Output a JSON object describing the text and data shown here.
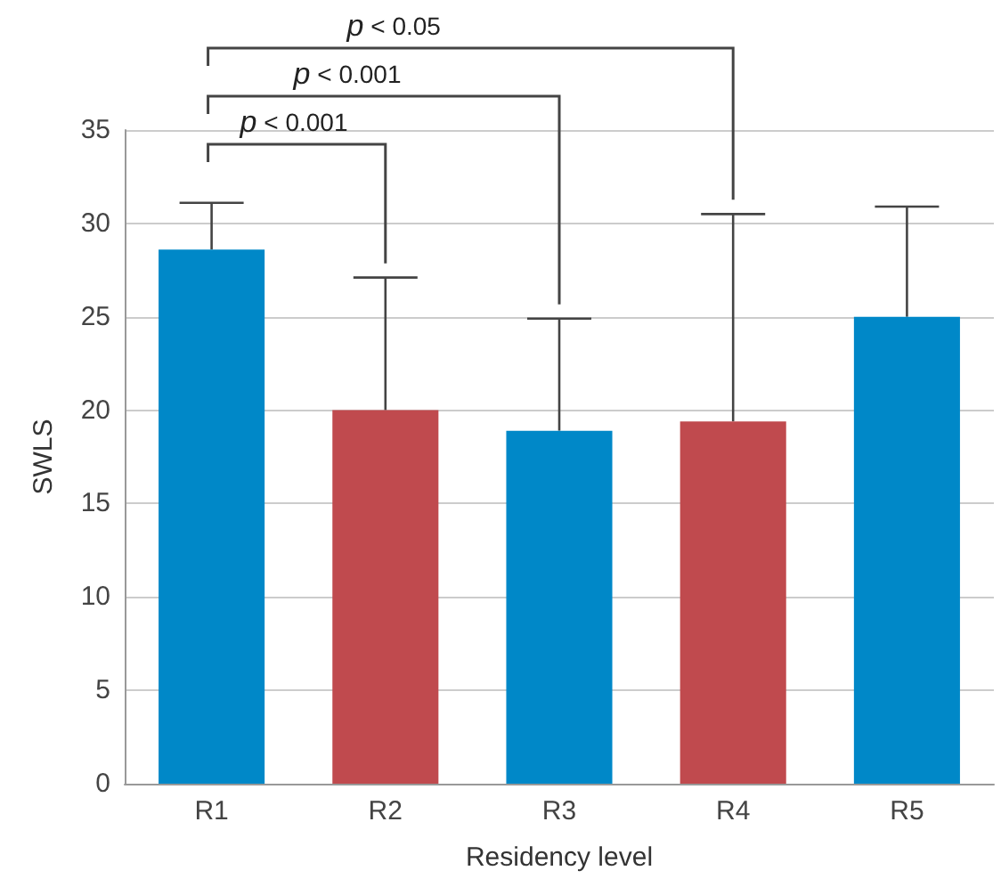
{
  "chart_data": {
    "type": "bar",
    "xlabel": "Residency level",
    "ylabel": "SWLS",
    "categories": [
      "R1",
      "R2",
      "R3",
      "R4",
      "R5"
    ],
    "values": [
      28.6,
      20,
      18.9,
      19.4,
      25
    ],
    "colors": [
      "#0088c8",
      "#c04a4e",
      "#0088c8",
      "#c04a4e",
      "#0088c8"
    ],
    "errors": [
      [
        28.6,
        31.1
      ],
      [
        20,
        27.1
      ],
      [
        18.9,
        24.9
      ],
      [
        19.4,
        30.5
      ],
      [
        25,
        30.9
      ]
    ],
    "ylim": [
      0,
      35
    ],
    "yticks": [
      0,
      5,
      10,
      15,
      20,
      25,
      30,
      35
    ],
    "grid": "y",
    "annotations": [
      "p < 0.001",
      "p < 0.001",
      "p < 0.05"
    ]
  }
}
